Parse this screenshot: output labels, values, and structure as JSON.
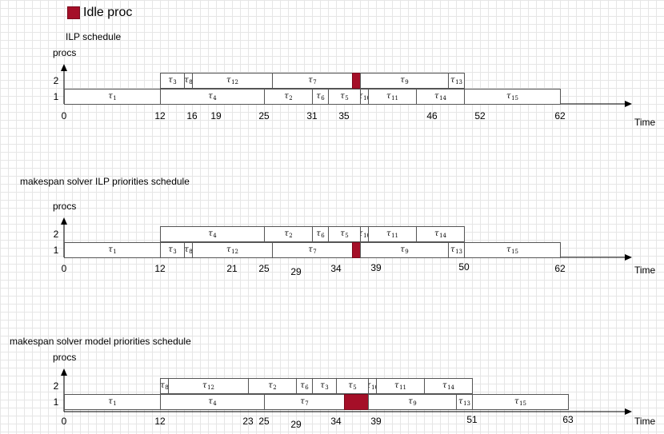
{
  "legend": {
    "label": "Idle proc",
    "color": "#a50f28"
  },
  "axis": {
    "y_label": "procs",
    "x_label": "Time",
    "rows": [
      "2",
      "1"
    ]
  },
  "schedules": [
    {
      "title": "ILP schedule",
      "ticks": [
        "0",
        "12",
        "16",
        "19",
        "25",
        "31",
        "35",
        "46",
        "52",
        "62"
      ],
      "proc2": [
        {
          "task": "3",
          "start": 12,
          "end": 15
        },
        {
          "task": "8",
          "start": 15,
          "end": 16
        },
        {
          "task": "12",
          "start": 16,
          "end": 26
        },
        {
          "task": "7",
          "start": 26,
          "end": 36
        },
        {
          "idle": true,
          "start": 36,
          "end": 37
        },
        {
          "task": "9",
          "start": 37,
          "end": 48
        },
        {
          "task": "13",
          "start": 48,
          "end": 50
        }
      ],
      "proc1": [
        {
          "task": "1",
          "start": 0,
          "end": 12
        },
        {
          "task": "4",
          "start": 12,
          "end": 25
        },
        {
          "task": "2",
          "start": 25,
          "end": 31
        },
        {
          "task": "6",
          "start": 31,
          "end": 33
        },
        {
          "task": "5",
          "start": 33,
          "end": 37
        },
        {
          "task": "10",
          "start": 37,
          "end": 38
        },
        {
          "task": "11",
          "start": 38,
          "end": 44
        },
        {
          "task": "14",
          "start": 44,
          "end": 50
        },
        {
          "task": "15",
          "start": 50,
          "end": 62
        }
      ]
    },
    {
      "title": "makespan solver ILP priorities schedule",
      "ticks": [
        "0",
        "12",
        "21",
        "25",
        "29",
        "34",
        "39",
        "50",
        "62"
      ],
      "proc2": [
        {
          "task": "4",
          "start": 12,
          "end": 25
        },
        {
          "task": "2",
          "start": 25,
          "end": 31
        },
        {
          "task": "6",
          "start": 31,
          "end": 33
        },
        {
          "task": "5",
          "start": 33,
          "end": 37
        },
        {
          "task": "10",
          "start": 37,
          "end": 38
        },
        {
          "task": "11",
          "start": 38,
          "end": 44
        },
        {
          "task": "14",
          "start": 44,
          "end": 50
        }
      ],
      "proc1": [
        {
          "task": "1",
          "start": 0,
          "end": 12
        },
        {
          "task": "3",
          "start": 12,
          "end": 15
        },
        {
          "task": "8",
          "start": 15,
          "end": 16
        },
        {
          "task": "12",
          "start": 16,
          "end": 26
        },
        {
          "task": "7",
          "start": 26,
          "end": 36
        },
        {
          "idle": true,
          "start": 36,
          "end": 37
        },
        {
          "task": "9",
          "start": 37,
          "end": 48
        },
        {
          "task": "13",
          "start": 48,
          "end": 50
        },
        {
          "task": "15",
          "start": 50,
          "end": 62
        }
      ]
    },
    {
      "title": "makespan solver model priorities schedule",
      "ticks": [
        "0",
        "12",
        "23",
        "25",
        "29",
        "34",
        "39",
        "51",
        "63"
      ],
      "proc2": [
        {
          "task": "8",
          "start": 12,
          "end": 13
        },
        {
          "task": "12",
          "start": 13,
          "end": 23
        },
        {
          "task": "2",
          "start": 23,
          "end": 29
        },
        {
          "task": "6",
          "start": 29,
          "end": 31
        },
        {
          "task": "3",
          "start": 31,
          "end": 34
        },
        {
          "task": "5",
          "start": 34,
          "end": 38
        },
        {
          "task": "10",
          "start": 38,
          "end": 39
        },
        {
          "task": "11",
          "start": 39,
          "end": 45
        },
        {
          "task": "14",
          "start": 45,
          "end": 51
        }
      ],
      "proc1": [
        {
          "task": "1",
          "start": 0,
          "end": 12
        },
        {
          "task": "4",
          "start": 12,
          "end": 25
        },
        {
          "task": "7",
          "start": 25,
          "end": 35
        },
        {
          "idle": true,
          "start": 35,
          "end": 38
        },
        {
          "task": "9",
          "start": 38,
          "end": 49
        },
        {
          "task": "13",
          "start": 49,
          "end": 51
        },
        {
          "task": "15",
          "start": 51,
          "end": 63
        }
      ]
    }
  ]
}
